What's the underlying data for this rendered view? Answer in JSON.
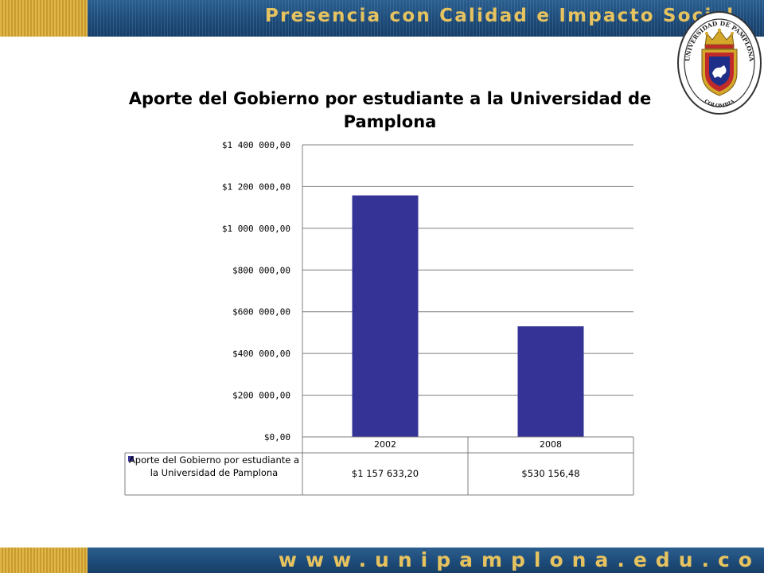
{
  "header": {
    "tagline": "Presencia con Calidad e Impacto Social"
  },
  "footer": {
    "url": "www.unipamplona.edu.co"
  },
  "logo": {
    "top_text": "UNIVERSIDAD DE PAMPLONA",
    "bottom_text": "COLOMBIA"
  },
  "colors": {
    "bar": "#363396",
    "band": "#1d4a78",
    "gold": "#e7c35f"
  },
  "chart_data": {
    "type": "bar",
    "title": "Aporte del Gobierno por estudiante a la Universidad de Pamplona",
    "categories": [
      "2002",
      "2008"
    ],
    "series": [
      {
        "name": "Aporte del Gobierno por estudiante a la Universidad de Pamplona",
        "values": [
          1157633.2,
          530156.48
        ],
        "labels": [
          "$1 157 633,20",
          "$530 156,48"
        ]
      }
    ],
    "yticks": [
      "$0,00",
      "$200 000,00",
      "$400 000,00",
      "$600 000,00",
      "$800 000,00",
      "$1 000 000,00",
      "$1 200 000,00",
      "$1 400 000,00"
    ],
    "ylim": [
      0,
      1400000
    ],
    "grid": true,
    "legend": "data-table-left"
  }
}
